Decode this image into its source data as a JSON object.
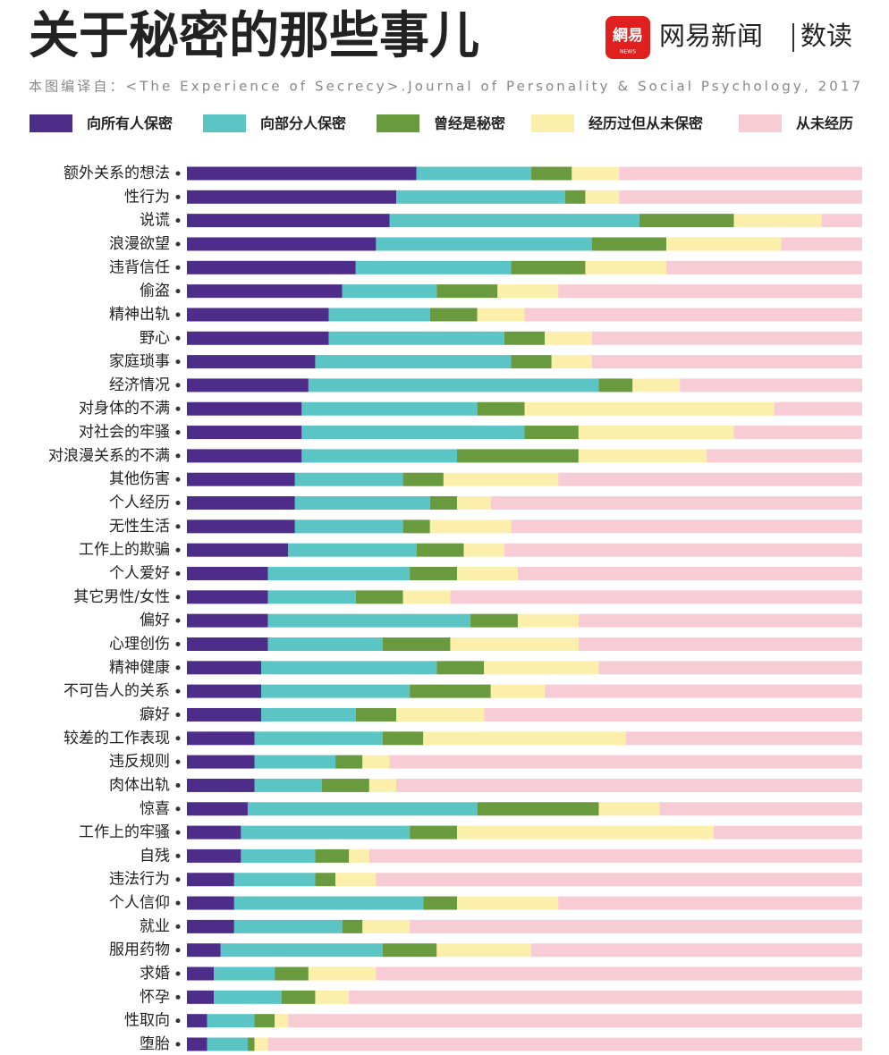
{
  "header": {
    "logo_icon": "網易",
    "logo_icon_sub": "NEWS",
    "brand": "网易新闻",
    "section": "数读"
  },
  "chart_data": {
    "type": "stacked-bar-horizontal",
    "title": "关于秘密的那些事儿",
    "subtitle": "本图编译自：<The Experience of Secrecy>.Journal of Personality & Social Psychology, 2017",
    "xlim": [
      0,
      100
    ],
    "categories": [
      "额外关系的想法",
      "性行为",
      "说谎",
      "浪漫欲望",
      "违背信任",
      "偷盗",
      "精神出轨",
      "野心",
      "家庭琐事",
      "经济情况",
      "对身体的不满",
      "对社会的牢骚",
      "对浪漫关系的不满",
      "其他伤害",
      "个人经历",
      "无性生活",
      "工作上的欺骗",
      "个人爱好",
      "其它男性/女性",
      "偏好",
      "心理创伤",
      "精神健康",
      "不可告人的关系",
      "癖好",
      "较差的工作表现",
      "违反规则",
      "肉体出轨",
      "惊喜",
      "工作上的牢骚",
      "自残",
      "违法行为",
      "个人信仰",
      "就业",
      "服用药物",
      "求婚",
      "怀孕",
      "性取向",
      "堕胎"
    ],
    "series": [
      {
        "name": "向所有人保密",
        "color": "#4e2c8a",
        "values": [
          34,
          31,
          30,
          28,
          25,
          23,
          21,
          21,
          19,
          18,
          17,
          17,
          17,
          16,
          16,
          16,
          15,
          12,
          12,
          12,
          12,
          11,
          11,
          11,
          10,
          10,
          10,
          9,
          8,
          8,
          7,
          7,
          7,
          5,
          4,
          4,
          3,
          3
        ]
      },
      {
        "name": "向部分人保密",
        "color": "#5bc5c5",
        "values": [
          17,
          25,
          37,
          32,
          23,
          14,
          15,
          26,
          29,
          43,
          26,
          33,
          23,
          16,
          20,
          16,
          19,
          21,
          13,
          30,
          17,
          26,
          22,
          14,
          19,
          12,
          10,
          34,
          25,
          11,
          12,
          28,
          16,
          24,
          9,
          10,
          7,
          6
        ]
      },
      {
        "name": "曾经是秘密",
        "color": "#6a9a3e",
        "values": [
          6,
          3,
          14,
          11,
          11,
          9,
          7,
          6,
          6,
          5,
          7,
          8,
          18,
          6,
          4,
          4,
          7,
          7,
          7,
          7,
          10,
          7,
          12,
          6,
          6,
          4,
          7,
          18,
          7,
          5,
          3,
          5,
          3,
          8,
          5,
          5,
          3,
          1
        ]
      },
      {
        "name": "经历过但从未保密",
        "color": "#fcefab",
        "values": [
          7,
          5,
          13,
          17,
          12,
          9,
          7,
          7,
          6,
          7,
          37,
          23,
          19,
          17,
          5,
          12,
          6,
          9,
          7,
          9,
          19,
          17,
          8,
          13,
          30,
          4,
          4,
          9,
          38,
          3,
          6,
          15,
          7,
          14,
          10,
          5,
          2,
          2
        ]
      },
      {
        "name": "从未经历",
        "color": "#f8ccd4",
        "values": [
          36,
          36,
          6,
          12,
          29,
          45,
          50,
          40,
          40,
          27,
          13,
          19,
          23,
          45,
          55,
          52,
          53,
          51,
          61,
          42,
          42,
          39,
          47,
          56,
          35,
          70,
          69,
          30,
          22,
          73,
          72,
          45,
          67,
          49,
          72,
          76,
          85,
          88
        ]
      }
    ]
  }
}
